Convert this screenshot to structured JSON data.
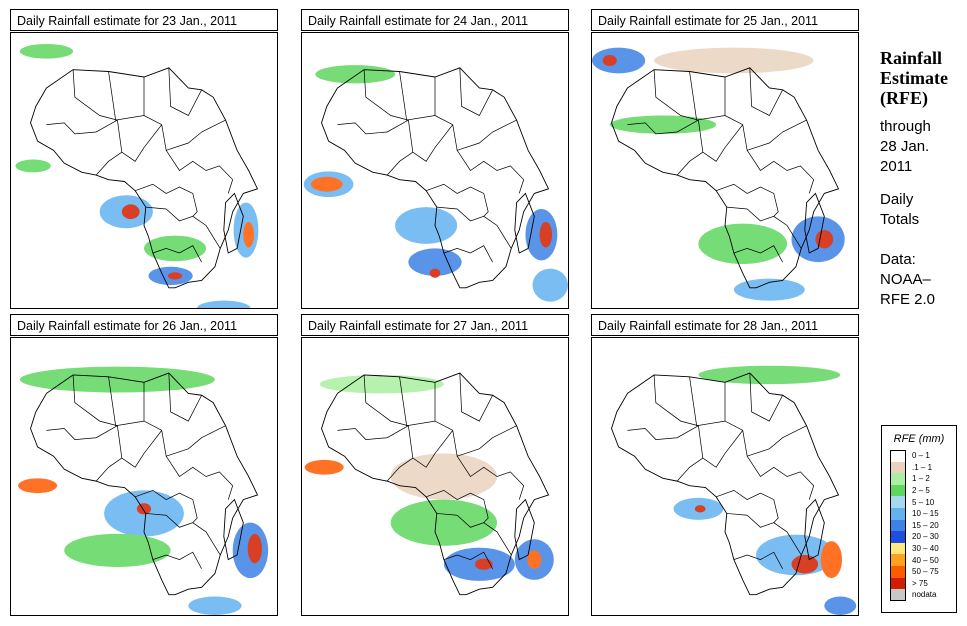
{
  "panels": [
    {
      "title": "Daily Rainfall estimate for  23 Jan., 2011",
      "date": "23 Jan., 2011"
    },
    {
      "title": "Daily Rainfall estimate for  24 Jan., 2011",
      "date": "24 Jan., 2011"
    },
    {
      "title": "Daily Rainfall estimate for  25 Jan., 2011",
      "date": "25 Jan., 2011"
    },
    {
      "title": "Daily Rainfall estimate for  26 Jan., 2011",
      "date": "26 Jan., 2011"
    },
    {
      "title": "Daily Rainfall estimate for  27 Jan., 2011",
      "date": "27 Jan., 2011"
    },
    {
      "title": "Daily Rainfall estimate for  28 Jan., 2011",
      "date": "28 Jan., 2011"
    }
  ],
  "side": {
    "title_line1": "Rainfall",
    "title_line2": "Estimate",
    "title_line3": "(RFE)",
    "through_line1": "through",
    "through_line2": "28 Jan.",
    "through_line3": "2011",
    "daily_line1": "Daily",
    "daily_line2": "Totals",
    "data_line1": "Data:",
    "data_line2": "NOAA–",
    "data_line3": "RFE 2.0"
  },
  "legend": {
    "title": "RFE (mm)",
    "items": [
      {
        "label": "0 – 1",
        "color": "#ffffff"
      },
      {
        "label": ".1 – 1",
        "color": "#e9d3bf"
      },
      {
        "label": "1 – 2",
        "color": "#aaf0a0"
      },
      {
        "label": "2 – 5",
        "color": "#5fd65f"
      },
      {
        "label": "5 – 10",
        "color": "#a6d8f0"
      },
      {
        "label": "10 – 15",
        "color": "#63b2f0"
      },
      {
        "label": "15 – 20",
        "color": "#3d82e6"
      },
      {
        "label": "20 – 30",
        "color": "#1e4fdc"
      },
      {
        "label": "30 – 40",
        "color": "#ffe680"
      },
      {
        "label": "40 – 50",
        "color": "#ffa01e"
      },
      {
        "label": "50 – 75",
        "color": "#ff5a00"
      },
      {
        "label": "> 75",
        "color": "#d21e00"
      },
      {
        "label": "nodata",
        "color": "#c8c8c8"
      }
    ]
  }
}
